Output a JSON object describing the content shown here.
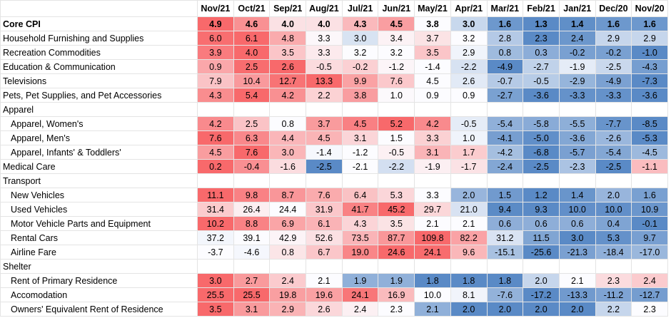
{
  "table": {
    "columns": [
      "Nov/21",
      "Oct/21",
      "Sep/21",
      "Aug/21",
      "Jul/21",
      "Jun/21",
      "May/21",
      "Apr/21",
      "Mar/21",
      "Feb/21",
      "Jan/21",
      "Dec/20",
      "Nov/20"
    ],
    "color_scale": {
      "low": "#5a8ac6",
      "mid": "#fcfcff",
      "high": "#f8696b"
    },
    "rows": [
      {
        "label": "Core CPI",
        "bold": true,
        "values": [
          "4.9",
          "4.6",
          "4.0",
          "4.0",
          "4.3",
          "4.5",
          "3.8",
          "3.0",
          "1.6",
          "1.3",
          "1.4",
          "1.6",
          "1.6"
        ]
      },
      {
        "label": "Household Furnishing and Supplies",
        "values": [
          "6.0",
          "6.1",
          "4.8",
          "3.3",
          "3.0",
          "3.4",
          "3.7",
          "3.2",
          "2.8",
          "2.3",
          "2.4",
          "2.9",
          "2.9"
        ]
      },
      {
        "label": "Recreation Commodities",
        "values": [
          "3.9",
          "4.0",
          "3.5",
          "3.3",
          "3.2",
          "3.2",
          "3.5",
          "2.9",
          "0.8",
          "0.3",
          "-0.2",
          "-0.2",
          "-1.0"
        ]
      },
      {
        "label": "Education & Communication",
        "values": [
          "0.9",
          "2.5",
          "2.6",
          "-0.5",
          "-0.2",
          "-1.2",
          "-1.4",
          "-2.2",
          "-4.9",
          "-2.7",
          "-1.9",
          "-2.5",
          "-4.3"
        ]
      },
      {
        "label": "Televisions",
        "values": [
          "7.9",
          "10.4",
          "12.7",
          "13.3",
          "9.9",
          "7.6",
          "4.5",
          "2.6",
          "-0.7",
          "-0.5",
          "-2.9",
          "-4.9",
          "-7.3"
        ]
      },
      {
        "label": "Pets, Pet Supplies, and Pet Accessories",
        "values": [
          "4.3",
          "5.4",
          "4.2",
          "2.2",
          "3.8",
          "1.0",
          "0.9",
          "0.9",
          "-2.7",
          "-3.6",
          "-3.3",
          "-3.3",
          "-3.6"
        ]
      },
      {
        "label": "Apparel"
      },
      {
        "label": "Apparel, Women's",
        "indent": true,
        "values": [
          "4.2",
          "2.5",
          "0.8",
          "3.7",
          "4.5",
          "5.2",
          "4.2",
          "-0.5",
          "-5.4",
          "-5.8",
          "-5.5",
          "-7.7",
          "-8.5"
        ]
      },
      {
        "label": "Apparel, Men's",
        "indent": true,
        "values": [
          "7.6",
          "6.3",
          "4.4",
          "4.5",
          "3.1",
          "1.5",
          "3.3",
          "1.0",
          "-4.1",
          "-5.0",
          "-3.6",
          "-2.6",
          "-5.3"
        ]
      },
      {
        "label": "Apparel, Infants' & Toddlers'",
        "indent": true,
        "values": [
          "4.5",
          "7.6",
          "3.0",
          "-1.4",
          "-1.2",
          "-0.5",
          "3.1",
          "1.7",
          "-4.2",
          "-6.8",
          "-5.7",
          "-5.4",
          "-4.5"
        ]
      },
      {
        "label": "Medical Care",
        "values": [
          "0.2",
          "-0.4",
          "-1.6",
          "-2.5",
          "-2.1",
          "-2.2",
          "-1.9",
          "-1.7",
          "-2.4",
          "-2.5",
          "-2.3",
          "-2.5",
          "-1.1"
        ]
      },
      {
        "label": "Transport"
      },
      {
        "label": "New Vehicles",
        "indent": true,
        "values": [
          "11.1",
          "9.8",
          "8.7",
          "7.6",
          "6.4",
          "5.3",
          "3.3",
          "2.0",
          "1.5",
          "1.2",
          "1.4",
          "2.0",
          "1.6"
        ]
      },
      {
        "label": "Used Vehicles",
        "indent": true,
        "values": [
          "31.4",
          "26.4",
          "24.4",
          "31.9",
          "41.7",
          "45.2",
          "29.7",
          "21.0",
          "9.4",
          "9.3",
          "10.0",
          "10.0",
          "10.9"
        ]
      },
      {
        "label": "Motor Vehicle Parts and Equipment",
        "indent": true,
        "values": [
          "10.2",
          "8.8",
          "6.9",
          "6.1",
          "4.3",
          "3.5",
          "2.1",
          "2.1",
          "0.6",
          "0.6",
          "0.6",
          "0.4",
          "-0.1"
        ]
      },
      {
        "label": "Rental Cars",
        "indent": true,
        "values": [
          "37.2",
          "39.1",
          "42.9",
          "52.6",
          "73.5",
          "87.7",
          "109.8",
          "82.2",
          "31.2",
          "11.5",
          "3.0",
          "5.3",
          "9.7"
        ]
      },
      {
        "label": "Airline Fare",
        "indent": true,
        "values": [
          "-3.7",
          "-4.6",
          "0.8",
          "6.7",
          "19.0",
          "24.6",
          "24.1",
          "9.6",
          "-15.1",
          "-25.6",
          "-21.3",
          "-18.4",
          "-17.0"
        ]
      },
      {
        "label": "Shelter"
      },
      {
        "label": "Rent of Primary Residence",
        "indent": true,
        "values": [
          "3.0",
          "2.7",
          "2.4",
          "2.1",
          "1.9",
          "1.9",
          "1.8",
          "1.8",
          "1.8",
          "2.0",
          "2.1",
          "2.3",
          "2.4"
        ]
      },
      {
        "label": "Accomodation",
        "indent": true,
        "values": [
          "25.5",
          "25.5",
          "19.8",
          "19.6",
          "24.1",
          "16.9",
          "10.0",
          "8.1",
          "-7.6",
          "-17.2",
          "-13.3",
          "-11.2",
          "-12.7"
        ]
      },
      {
        "label": "Owners' Equivalent Rent of Residence",
        "indent": true,
        "values": [
          "3.5",
          "3.1",
          "2.9",
          "2.6",
          "2.4",
          "2.3",
          "2.1",
          "2.0",
          "2.0",
          "2.0",
          "2.0",
          "2.2",
          "2.3"
        ]
      }
    ]
  }
}
